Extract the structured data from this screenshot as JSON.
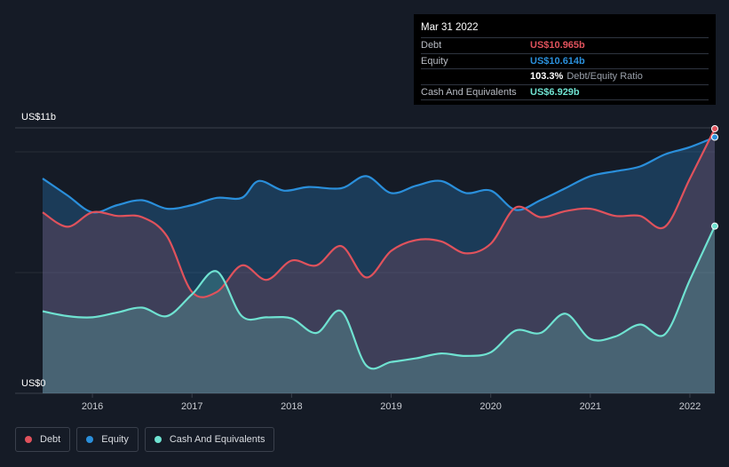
{
  "tooltip": {
    "date": "Mar 31 2022",
    "debt_label": "Debt",
    "debt_value": "US$10.965b",
    "equity_label": "Equity",
    "equity_value": "US$10.614b",
    "ratio_value": "103.3%",
    "ratio_label": "Debt/Equity Ratio",
    "cash_label": "Cash And Equivalents",
    "cash_value": "US$6.929b"
  },
  "legend": [
    {
      "label": "Debt",
      "color": "#e0525c"
    },
    {
      "label": "Equity",
      "color": "#2a8fdb"
    },
    {
      "label": "Cash And Equivalents",
      "color": "#6fe2d1"
    }
  ],
  "chart_data": {
    "type": "area",
    "y_top_label": "US$11b",
    "y_bottom_label": "US$0",
    "ylim": [
      0,
      11
    ],
    "xlim": [
      2015.5,
      2022.25
    ],
    "x_ticks": [
      "2016",
      "2017",
      "2018",
      "2019",
      "2020",
      "2021",
      "2022"
    ],
    "x_tick_values": [
      2016,
      2017,
      2018,
      2019,
      2020,
      2021,
      2022
    ],
    "series": [
      {
        "name": "Equity",
        "color": "#2a8fdb",
        "points": [
          [
            2015.5,
            8.9
          ],
          [
            2015.75,
            8.2
          ],
          [
            2016.0,
            7.5
          ],
          [
            2016.25,
            7.8
          ],
          [
            2016.5,
            8.0
          ],
          [
            2016.75,
            7.65
          ],
          [
            2017.0,
            7.8
          ],
          [
            2017.25,
            8.1
          ],
          [
            2017.5,
            8.1
          ],
          [
            2017.67,
            8.8
          ],
          [
            2017.92,
            8.4
          ],
          [
            2018.17,
            8.55
          ],
          [
            2018.5,
            8.5
          ],
          [
            2018.75,
            9.0
          ],
          [
            2019.0,
            8.3
          ],
          [
            2019.25,
            8.6
          ],
          [
            2019.5,
            8.8
          ],
          [
            2019.75,
            8.3
          ],
          [
            2020.0,
            8.4
          ],
          [
            2020.25,
            7.6
          ],
          [
            2020.5,
            8.0
          ],
          [
            2020.75,
            8.5
          ],
          [
            2021.0,
            9.0
          ],
          [
            2021.25,
            9.2
          ],
          [
            2021.5,
            9.4
          ],
          [
            2021.75,
            9.9
          ],
          [
            2022.0,
            10.2
          ],
          [
            2022.25,
            10.614
          ]
        ]
      },
      {
        "name": "Debt",
        "color": "#e0525c",
        "points": [
          [
            2015.5,
            7.5
          ],
          [
            2015.75,
            6.9
          ],
          [
            2016.0,
            7.5
          ],
          [
            2016.25,
            7.35
          ],
          [
            2016.5,
            7.3
          ],
          [
            2016.75,
            6.5
          ],
          [
            2017.0,
            4.2
          ],
          [
            2017.25,
            4.2
          ],
          [
            2017.5,
            5.3
          ],
          [
            2017.75,
            4.7
          ],
          [
            2018.0,
            5.5
          ],
          [
            2018.25,
            5.3
          ],
          [
            2018.5,
            6.1
          ],
          [
            2018.75,
            4.8
          ],
          [
            2019.0,
            5.9
          ],
          [
            2019.25,
            6.35
          ],
          [
            2019.5,
            6.3
          ],
          [
            2019.75,
            5.8
          ],
          [
            2020.0,
            6.2
          ],
          [
            2020.25,
            7.7
          ],
          [
            2020.5,
            7.3
          ],
          [
            2020.75,
            7.55
          ],
          [
            2021.0,
            7.65
          ],
          [
            2021.25,
            7.35
          ],
          [
            2021.5,
            7.35
          ],
          [
            2021.75,
            6.9
          ],
          [
            2022.0,
            8.9
          ],
          [
            2022.25,
            10.965
          ]
        ]
      },
      {
        "name": "Cash And Equivalents",
        "color": "#6fe2d1",
        "points": [
          [
            2015.5,
            3.4
          ],
          [
            2015.75,
            3.2
          ],
          [
            2016.0,
            3.15
          ],
          [
            2016.25,
            3.35
          ],
          [
            2016.5,
            3.55
          ],
          [
            2016.75,
            3.2
          ],
          [
            2017.0,
            4.1
          ],
          [
            2017.25,
            5.05
          ],
          [
            2017.5,
            3.2
          ],
          [
            2017.75,
            3.15
          ],
          [
            2018.0,
            3.1
          ],
          [
            2018.25,
            2.5
          ],
          [
            2018.5,
            3.4
          ],
          [
            2018.75,
            1.15
          ],
          [
            2019.0,
            1.3
          ],
          [
            2019.25,
            1.45
          ],
          [
            2019.5,
            1.65
          ],
          [
            2019.75,
            1.55
          ],
          [
            2020.0,
            1.7
          ],
          [
            2020.25,
            2.6
          ],
          [
            2020.5,
            2.5
          ],
          [
            2020.75,
            3.3
          ],
          [
            2021.0,
            2.25
          ],
          [
            2021.25,
            2.35
          ],
          [
            2021.5,
            2.85
          ],
          [
            2021.75,
            2.45
          ],
          [
            2022.0,
            4.7
          ],
          [
            2022.25,
            6.929
          ]
        ]
      }
    ]
  }
}
